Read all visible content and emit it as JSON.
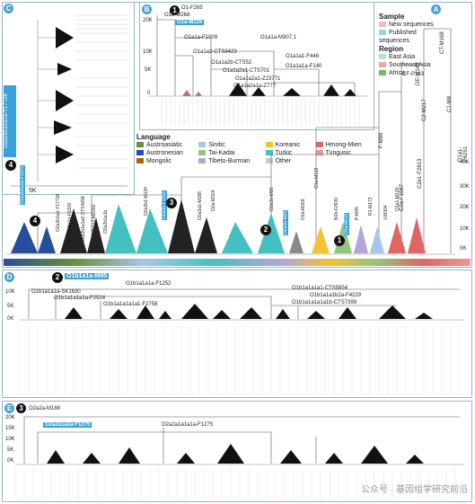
{
  "panels": {
    "A": "A",
    "B": "B",
    "C": "C",
    "D": "D",
    "E": "E"
  },
  "legend_top": {
    "sample_title": "Sample",
    "sample_items": [
      {
        "label": "New sequences",
        "color": "#f4b6c8"
      },
      {
        "label": "Published sequences",
        "color": "#9fcfe6"
      }
    ],
    "region_title": "Region",
    "region_items": [
      {
        "label": "East Asia",
        "color": "#b7e3c8"
      },
      {
        "label": "Southeast Asia",
        "color": "#f0a9a0"
      },
      {
        "label": "Africa",
        "color": "#7ab85a"
      }
    ]
  },
  "language_legend": {
    "title": "Language",
    "items": [
      {
        "label": "Austroasiatic",
        "color": "#6a8f3a"
      },
      {
        "label": "Sinitic",
        "color": "#a6c7ea"
      },
      {
        "label": "Koreanic",
        "color": "#f1c232"
      },
      {
        "label": "Hmong-Mien",
        "color": "#e06666"
      },
      {
        "label": "Austronesian",
        "color": "#274e9c"
      },
      {
        "label": "Tai-Kadai",
        "color": "#93c47d"
      },
      {
        "label": "Turkic",
        "color": "#45c0c0"
      },
      {
        "label": "Tungusic",
        "color": "#ea9999"
      },
      {
        "label": "Mongolic",
        "color": "#b45f06"
      },
      {
        "label": "Tibeto-Burman",
        "color": "#b4a7d6"
      },
      {
        "label": "Other",
        "color": "#cccccc"
      }
    ]
  },
  "panel_b_labels": {
    "top": [
      "O1-F265",
      "O1b-M268"
    ],
    "highlight": "O1a-M119",
    "subclades": [
      "O1a1a-F1009",
      "O1a1a-M307.1",
      "O1a1a2-CTS8423",
      "O1a1a1-F446",
      "O1a1a2b-CTS52",
      "O1a1a1a-F140",
      "O1a1a2a1-CTS701",
      "O1a1a2a1-Z23771",
      "O1a1a2a1a-Z777"
    ],
    "ticks": [
      "20K",
      "10K",
      "5K",
      "0"
    ]
  },
  "panel_c_labels": {
    "highlight": "O2a2b1a1a1a-Y17728",
    "tick": "5K",
    "badge": "4"
  },
  "panel_a_labels": {
    "right_tags": [
      "CT-M168",
      "DE-M145",
      "F-M89",
      "CF-P143"
    ],
    "right_mid": [
      "C1-M8",
      "C2-M217",
      "D1a1-F6251",
      "C2e1-F2613",
      "C2a-F1067"
    ],
    "highlights": [
      "O2a2b1a1a-F1275",
      "O2a1b-M95",
      "O2a2b-F1252",
      "O1a-M119"
    ],
    "clade_labels": [
      "O2a2b1a1-Y17728",
      "O2a2b1a1a-F1209",
      "O2a2b1a1a2-CTS4658",
      "O2a2b1a2-M8302",
      "O2a2b1a1b",
      "O2a2b1-M134",
      "O2a2a1-M188",
      "O2a-M324",
      "O2a1b-M95",
      "O1b-M268",
      "N1b-F2930",
      "P-M45",
      "R1-M173",
      "J-M304",
      "Q1a1-M120",
      "O1a-M119"
    ],
    "yticks": [
      "40K",
      "30K",
      "20K",
      "10K",
      "0K"
    ],
    "badges": [
      "1",
      "2",
      "3",
      "4"
    ]
  },
  "panel_d_labels": {
    "badge": "2",
    "highlight": "O1b1a1a-M95",
    "labels": [
      "O1b1a1a1a-F1252",
      "O1b1a1a1a1-CTS5854",
      "O1b1a1a1a-SK1630",
      "O1b1a1a1a1a-F2524",
      "O1b1a1a1b2a-F4229",
      "O1b1a1a1a1a1-F2758",
      "O1b1a1a1a1a1b-CTS7399"
    ],
    "ticks": [
      "10K",
      "5K",
      "0K"
    ]
  },
  "panel_e_labels": {
    "badge": "3",
    "top": "O2a2a-M188",
    "highlight": "O2a2a1a2a-F1275",
    "label2": "O2a2a1a1a1a-F1275",
    "ticks": [
      "20K",
      "15K",
      "10K",
      "5K",
      "0K"
    ]
  },
  "watermark": "公众号 · 基因组学研究前沿"
}
